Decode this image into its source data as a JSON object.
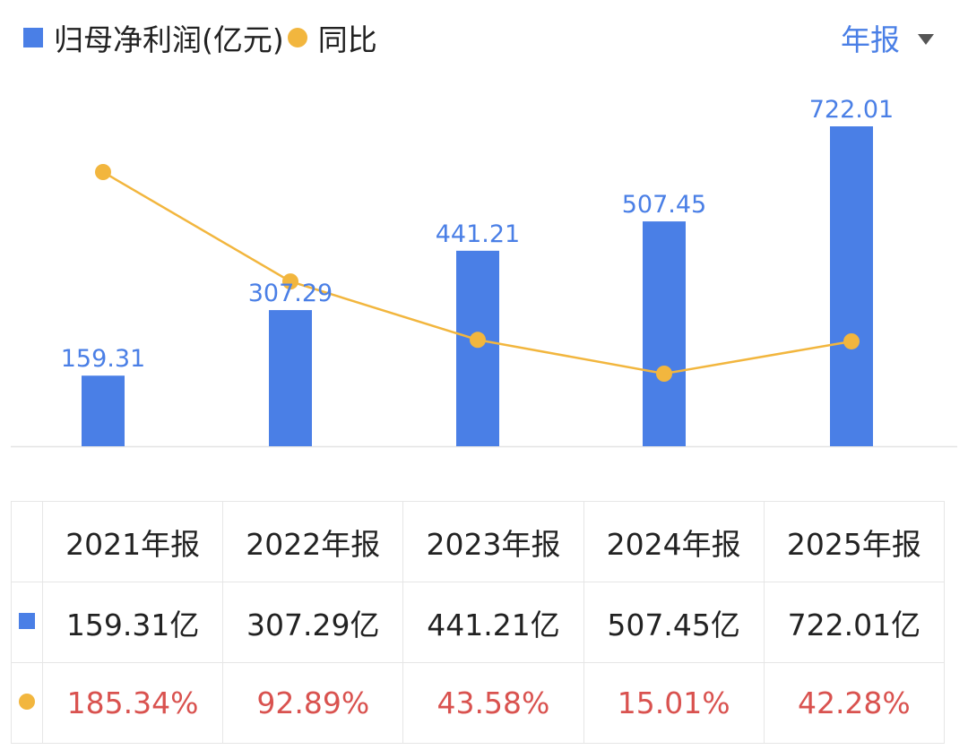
{
  "legend": {
    "bar_label": "归母净利润(亿元)",
    "line_label": "同比"
  },
  "period_selector": {
    "label": "年报",
    "icon": "triangle-down-icon"
  },
  "colors": {
    "bar": "#4a7fe6",
    "line": "#f2b63e",
    "pct_text": "#d9524f",
    "label_text": "#4a7fe6"
  },
  "chart_data": {
    "type": "bar",
    "categories": [
      "2021年报",
      "2022年报",
      "2023年报",
      "2024年报",
      "2025年报"
    ],
    "series": [
      {
        "name": "归母净利润(亿元)",
        "type": "bar",
        "values": [
          159.31,
          307.29,
          441.21,
          507.45,
          722.01
        ],
        "labels": [
          "159.31",
          "307.29",
          "441.21",
          "507.45",
          "722.01"
        ]
      },
      {
        "name": "同比",
        "type": "line",
        "values": [
          185.34,
          92.89,
          43.58,
          15.01,
          42.28
        ]
      }
    ],
    "grid": false
  },
  "table": {
    "headers": [
      "2021年报",
      "2022年报",
      "2023年报",
      "2024年报",
      "2025年报"
    ],
    "profit_row": [
      "159.31亿",
      "307.29亿",
      "441.21亿",
      "507.45亿",
      "722.01亿"
    ],
    "yoy_row": [
      "185.34%",
      "92.89%",
      "43.58%",
      "15.01%",
      "42.28%"
    ]
  }
}
